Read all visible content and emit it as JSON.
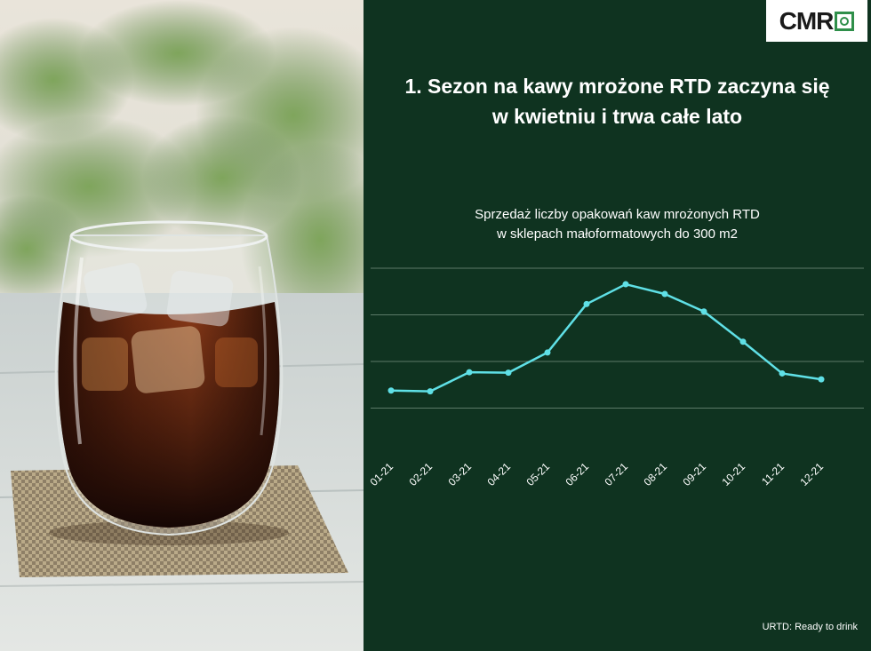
{
  "logo": {
    "text": "CMR"
  },
  "title": {
    "line1": "1. Sezon na kawy mrożone RTD zaczyna się",
    "line2": "w kwietniu i trwa całe lato"
  },
  "subtitle": {
    "line1": "Sprzedaż liczby opakowań kaw mrożonych RTD",
    "line2": "w sklepach małoformatowych do 300 m2"
  },
  "footnote": "URTD: Ready to drink",
  "colors": {
    "panel": "#0f3320",
    "line": "#5fe0e6",
    "grid": "#5c7a68"
  },
  "chart_data": {
    "type": "line",
    "categories": [
      "01-21",
      "02-21",
      "03-21",
      "04-21",
      "05-21",
      "06-21",
      "07-21",
      "08-21",
      "09-21",
      "10-21",
      "11-21",
      "12-21"
    ],
    "series": [
      {
        "values": [
          1.72,
          1.7,
          2.21,
          2.2,
          2.74,
          4.04,
          4.57,
          4.31,
          3.84,
          3.03,
          2.18,
          2.02
        ]
      }
    ],
    "ylim": [
      0,
      5
    ],
    "grid": true,
    "legend": "none",
    "xlabel": "",
    "ylabel": ""
  }
}
